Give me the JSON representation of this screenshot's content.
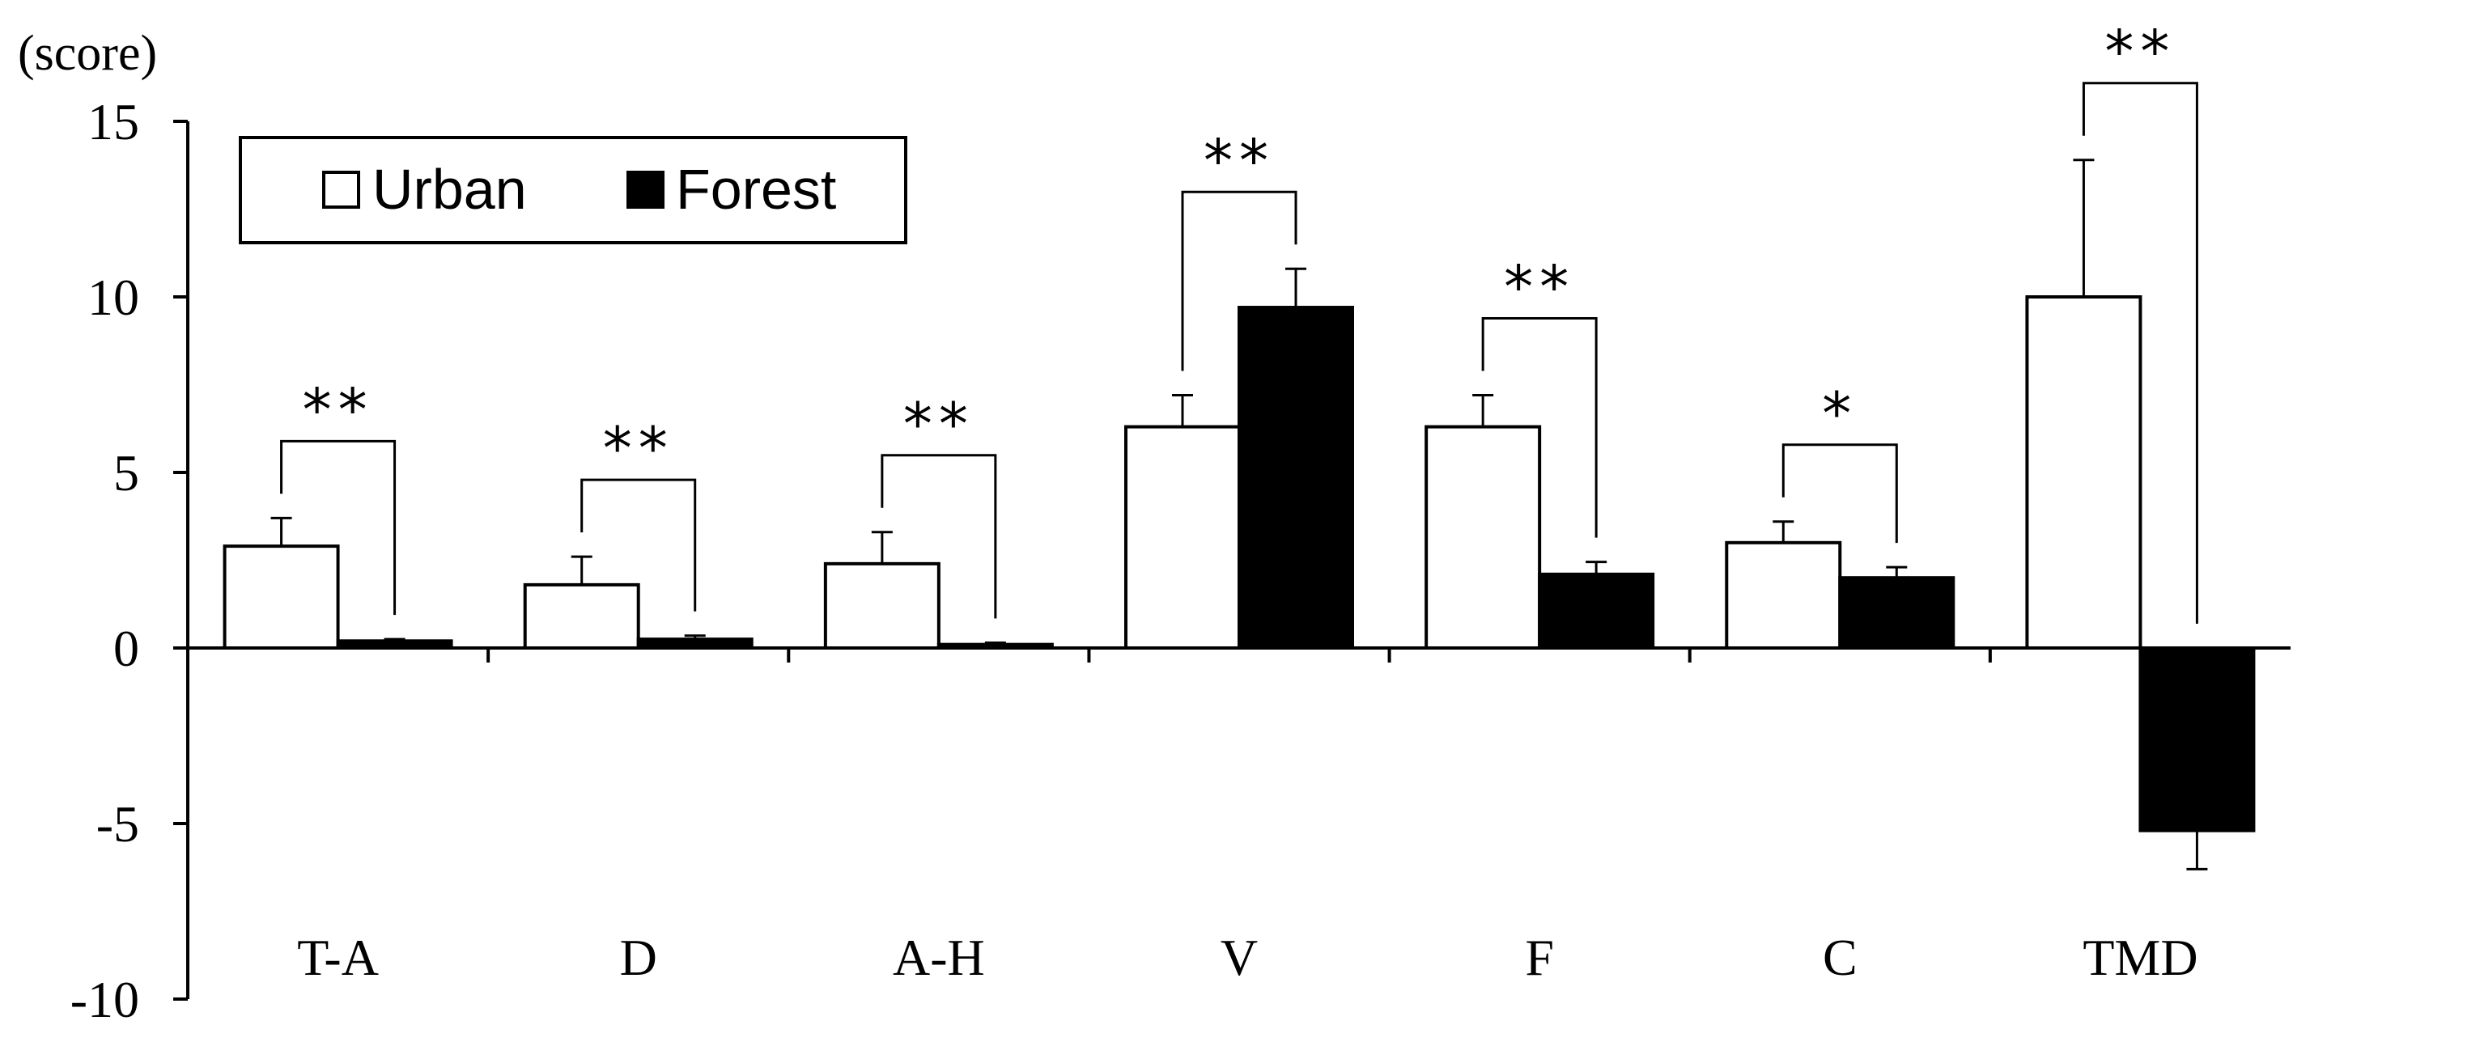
{
  "chart_data": {
    "type": "bar",
    "ylabel": "(score)",
    "ylim": [
      -10,
      15
    ],
    "yticks": [
      -10,
      -5,
      0,
      5,
      10,
      15
    ],
    "categories": [
      "T-A",
      "D",
      "A-H",
      "V",
      "F",
      "C",
      "TMD"
    ],
    "series": [
      {
        "name": "Urban",
        "color": "#ffffff",
        "values": [
          2.9,
          1.8,
          2.4,
          6.3,
          6.3,
          3.0,
          10.0
        ],
        "errors": [
          0.8,
          0.8,
          0.9,
          0.9,
          0.9,
          0.6,
          3.9
        ]
      },
      {
        "name": "Forest",
        "color": "#000000",
        "values": [
          0.2,
          0.25,
          0.1,
          9.7,
          2.1,
          2.0,
          -5.2
        ],
        "errors": [
          0.05,
          0.1,
          0.05,
          1.1,
          0.35,
          0.3,
          1.1
        ]
      }
    ],
    "significance": [
      "**",
      "**",
      "**",
      "**",
      "**",
      "*",
      "**"
    ],
    "legend_position": "top-left",
    "grid": false
  }
}
